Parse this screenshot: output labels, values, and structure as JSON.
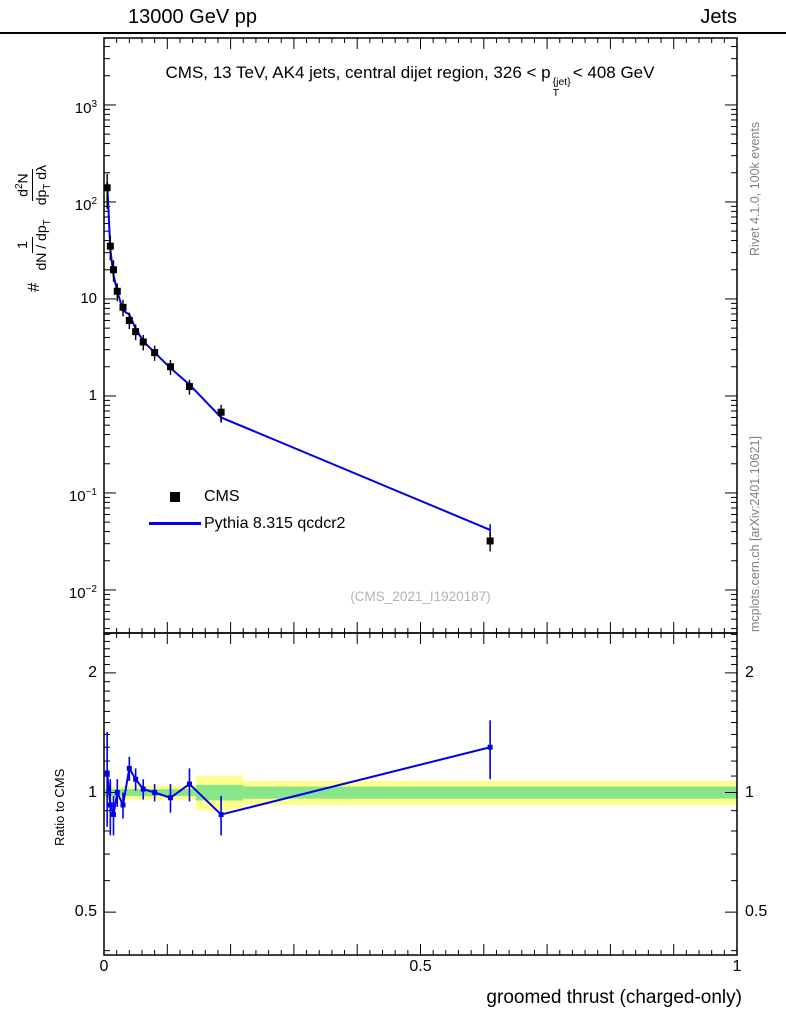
{
  "header": {
    "left": "13000 GeV pp",
    "right": "Jets"
  },
  "title": {
    "prefix": "CMS, 13 TeV, AK4 jets, central dijet region, 326 < p",
    "sup": "{jet}",
    "sub": "T",
    "suffix": "< 408 GeV"
  },
  "watermark": "(CMS_2021_I1920187)",
  "side_notes": {
    "top_right": "Rivet 4.1.0, 100k events",
    "bottom_right": "mcplots.cern.ch [arXiv:2401.10621]"
  },
  "ylabel": {
    "hash": "#",
    "f1_num": "1",
    "f1_den_a": "dN / dp",
    "f1_den_sub": "T",
    "f2_num_a": "d",
    "f2_num_sup": "2",
    "f2_num_b": "N",
    "f2_den_a": "dp",
    "f2_den_sub": "T",
    "f2_den_b": " dλ"
  },
  "ratio_ylabel": "Ratio to CMS",
  "xlabel": "groomed thrust (charged-only)",
  "legend": {
    "items": [
      {
        "label": "CMS",
        "marker": "square",
        "color": "#000000"
      },
      {
        "label": "Pythia 8.315 qcdcr2",
        "marker": "line",
        "color": "#0000ee"
      }
    ]
  },
  "colors": {
    "mc_line": "#0000ee",
    "data_marker": "#000000",
    "band_yellow": "#ffff8f",
    "band_green": "#89e589",
    "note_gray": "#808080",
    "watermark_gray": "#b3b3b3"
  },
  "chart_data": {
    "type": "line",
    "title": "CMS, 13 TeV, AK4 jets, central dijet region, 326 < pT^{jet} < 408 GeV",
    "xlabel": "groomed thrust (charged-only)",
    "x_ticks": [
      {
        "v": 0,
        "label": "0"
      },
      {
        "v": 0.5,
        "label": "0.5"
      },
      {
        "v": 1,
        "label": "1"
      }
    ],
    "main_panel": {
      "yscale": "log",
      "xlim": [
        0,
        1
      ],
      "ylim": [
        0.0036,
        4900
      ],
      "y_ticks": [
        {
          "v": 1000,
          "base": "10",
          "exp": "3"
        },
        {
          "v": 100,
          "base": "10",
          "exp": "2"
        },
        {
          "v": 10,
          "base": "10",
          "exp": ""
        },
        {
          "v": 1,
          "base": "1",
          "exp": ""
        },
        {
          "v": 0.1,
          "base": "10",
          "exp": "−1"
        },
        {
          "v": 0.01,
          "base": "10",
          "exp": "−2"
        }
      ],
      "series": [
        {
          "name": "CMS",
          "style": "errorbar-square",
          "color": "#000000",
          "x": [
            0.005,
            0.01,
            0.015,
            0.021,
            0.03,
            0.04,
            0.05,
            0.062,
            0.08,
            0.105,
            0.135,
            0.185,
            0.61
          ],
          "y": [
            140,
            35,
            20,
            12,
            8.2,
            6.0,
            4.6,
            3.6,
            2.8,
            2.0,
            1.25,
            0.68,
            0.032
          ],
          "ey": [
            55,
            10,
            5,
            2.5,
            1.6,
            1.1,
            0.85,
            0.65,
            0.5,
            0.35,
            0.22,
            0.13,
            0.007
          ]
        },
        {
          "name": "Pythia 8.315 qcdcr2",
          "style": "line-errorbar",
          "color": "#0000ee",
          "x": [
            0.005,
            0.01,
            0.015,
            0.021,
            0.03,
            0.04,
            0.05,
            0.062,
            0.08,
            0.105,
            0.135,
            0.185,
            0.61
          ],
          "y": [
            157,
            32.5,
            17.6,
            12.0,
            7.6,
            6.9,
            4.97,
            3.67,
            2.8,
            1.94,
            1.31,
            0.6,
            0.0416
          ],
          "ey": [
            4,
            1.0,
            0.6,
            0.45,
            0.3,
            0.33,
            0.25,
            0.2,
            0.14,
            0.1,
            0.1,
            0.07,
            0.006
          ]
        }
      ]
    },
    "ratio_panel": {
      "yscale": "log",
      "ylim": [
        0.39,
        2.52
      ],
      "y_ticks": [
        {
          "v": 2,
          "label": "2"
        },
        {
          "v": 1,
          "label": "1"
        },
        {
          "v": 0.5,
          "label": "0.5"
        }
      ],
      "bands": [
        {
          "x0": 0.0,
          "x1": 0.145,
          "yellow": [
            0.96,
            1.04
          ],
          "green": [
            0.98,
            1.02
          ]
        },
        {
          "x0": 0.145,
          "x1": 0.22,
          "yellow": [
            0.9,
            1.1
          ],
          "green": [
            0.955,
            1.045
          ]
        },
        {
          "x0": 0.22,
          "x1": 1.0,
          "yellow": [
            0.93,
            1.07
          ],
          "green": [
            0.965,
            1.035
          ]
        }
      ],
      "series": [
        {
          "name": "Pythia 8.315 qcdcr2 / CMS",
          "style": "line-errorbar-square",
          "color": "#0000ee",
          "x": [
            0.005,
            0.01,
            0.015,
            0.021,
            0.03,
            0.04,
            0.05,
            0.062,
            0.08,
            0.105,
            0.135,
            0.185,
            0.61
          ],
          "y": [
            1.12,
            0.93,
            0.88,
            1.0,
            0.93,
            1.15,
            1.08,
            1.02,
            1.0,
            0.97,
            1.05,
            0.88,
            1.3
          ],
          "ey": [
            0.3,
            0.15,
            0.1,
            0.08,
            0.07,
            0.08,
            0.07,
            0.06,
            0.05,
            0.08,
            0.1,
            0.1,
            0.22
          ]
        }
      ]
    }
  }
}
